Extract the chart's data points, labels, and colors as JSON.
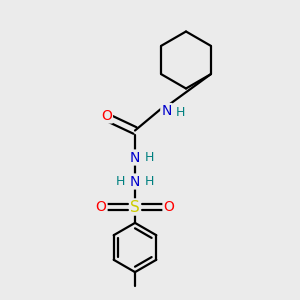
{
  "bg_color": "#ebebeb",
  "atom_colors": {
    "C": "#000000",
    "N": "#0000cc",
    "O": "#ff0000",
    "S": "#cccc00",
    "H": "#008080"
  },
  "bond_color": "#000000",
  "bond_width": 1.6,
  "fig_size": [
    3.0,
    3.0
  ],
  "dpi": 100
}
